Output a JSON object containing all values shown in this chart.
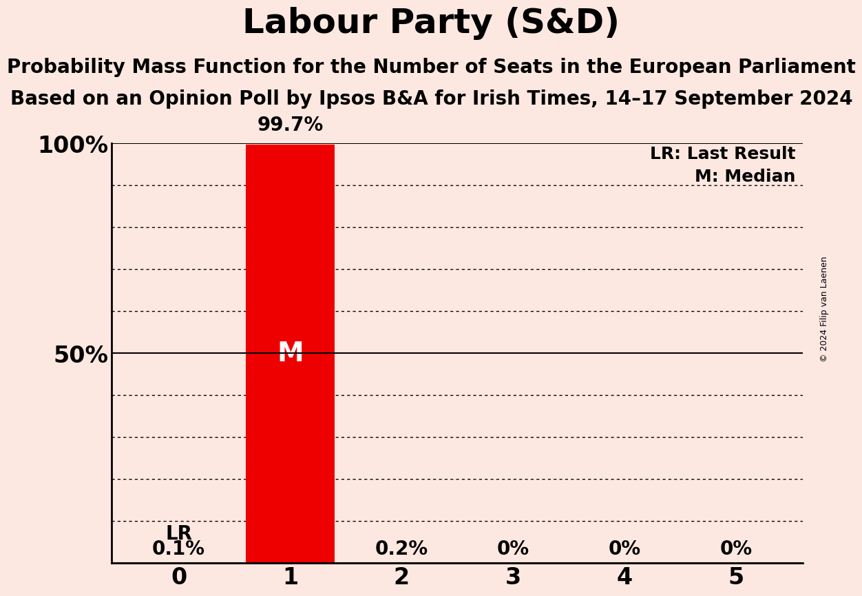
{
  "title": "Labour Party (S&D)",
  "subtitle1": "Probability Mass Function for the Number of Seats in the European Parliament",
  "subtitle2": "Based on an Opinion Poll by Ipsos B&A for Irish Times, 14–17 September 2024",
  "copyright": "© 2024 Filip van Laenen",
  "background_color": "#fce8e0",
  "bar_color": "#ee0000",
  "categories": [
    0,
    1,
    2,
    3,
    4,
    5
  ],
  "values": [
    0.001,
    0.997,
    0.002,
    0.0,
    0.0,
    0.0
  ],
  "value_labels": [
    "0.1%",
    "99.7%",
    "0.2%",
    "0%",
    "0%",
    "0%"
  ],
  "last_result_seat": 0,
  "lr_label": "LR",
  "median_seat": 1,
  "median_label": "M",
  "ylim": [
    0,
    1.0
  ],
  "yticks": [
    0.0,
    0.1,
    0.2,
    0.3,
    0.4,
    0.5,
    0.6,
    0.7,
    0.8,
    0.9,
    1.0
  ],
  "ytick_labels": [
    "",
    "",
    "",
    "",
    "",
    "50%",
    "",
    "",
    "",
    "",
    "100%"
  ],
  "legend_lr": "LR: Last Result",
  "legend_m": "M: Median",
  "title_fontsize": 36,
  "subtitle_fontsize": 20,
  "axis_label_fontsize": 24,
  "bar_label_fontsize": 20,
  "median_fontsize": 28,
  "legend_fontsize": 18,
  "copyright_fontsize": 9
}
